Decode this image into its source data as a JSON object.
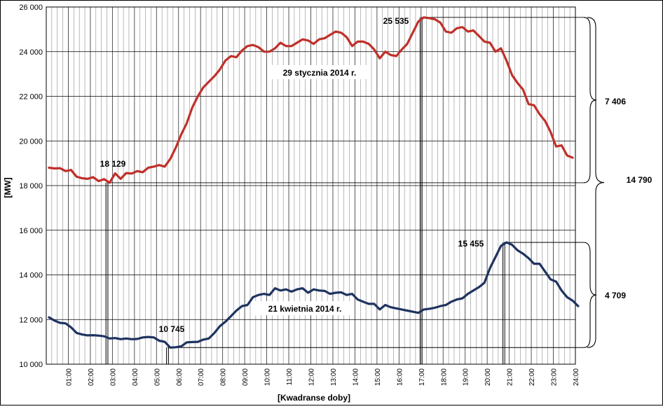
{
  "chart_data": {
    "type": "line",
    "ylabel": "[MW]",
    "xlabel": "[Kwadranse doby]",
    "ylim": [
      10000,
      26000
    ],
    "yticks": [
      10000,
      12000,
      14000,
      16000,
      18000,
      20000,
      22000,
      24000,
      26000
    ],
    "ytick_labels": [
      "10 000",
      "12 000",
      "14 000",
      "16 000",
      "18 000",
      "20 000",
      "22 000",
      "24 000",
      "26 000"
    ],
    "xlim": [
      0,
      96
    ],
    "xticks": [
      4,
      8,
      12,
      16,
      20,
      24,
      28,
      32,
      36,
      40,
      44,
      48,
      52,
      56,
      60,
      64,
      68,
      72,
      76,
      80,
      84,
      88,
      92,
      96
    ],
    "xtick_labels": [
      "01:00",
      "02:00",
      "03:00",
      "04:00",
      "05:00",
      "06:00",
      "07:00",
      "08:00",
      "09:00",
      "10:00",
      "11:00",
      "12:00",
      "13:00",
      "14:00",
      "15:00",
      "16:00",
      "17:00",
      "18:00",
      "19:00",
      "20:00",
      "21:00",
      "22:00",
      "23:00",
      "24:00"
    ],
    "grid": true,
    "series": [
      {
        "name": "29 stycznia 2014 r.",
        "color": "#c0302a",
        "values": [
          18800,
          18770,
          18780,
          18650,
          18700,
          18400,
          18330,
          18300,
          18380,
          18200,
          18290,
          18129,
          18550,
          18300,
          18560,
          18540,
          18650,
          18600,
          18800,
          18850,
          18920,
          18850,
          19200,
          19700,
          20300,
          20800,
          21500,
          22000,
          22400,
          22650,
          22900,
          23200,
          23600,
          23800,
          23750,
          24050,
          24250,
          24300,
          24200,
          24000,
          24000,
          24150,
          24400,
          24250,
          24250,
          24400,
          24550,
          24500,
          24350,
          24550,
          24600,
          24750,
          24900,
          24850,
          24650,
          24250,
          24450,
          24450,
          24350,
          24100,
          23700,
          24000,
          23850,
          23800,
          24100,
          24350,
          24850,
          25350,
          25535,
          25500,
          25450,
          25300,
          24900,
          24850,
          25050,
          25100,
          24900,
          24950,
          24700,
          24450,
          24400,
          24000,
          24150,
          23600,
          22950,
          22600,
          22300,
          21650,
          21600,
          21200,
          20900,
          20400,
          19750,
          19800,
          19350,
          19250
        ]
      },
      {
        "name": "21 kwietnia 2014 r.",
        "color": "#1e3360",
        "values": [
          12100,
          11950,
          11850,
          11830,
          11650,
          11400,
          11330,
          11290,
          11300,
          11280,
          11250,
          11150,
          11170,
          11120,
          11150,
          11120,
          11130,
          11200,
          11220,
          11200,
          11050,
          11000,
          10745,
          10760,
          10800,
          10980,
          10990,
          11000,
          11100,
          11150,
          11400,
          11700,
          11900,
          12150,
          12400,
          12600,
          12650,
          13000,
          13100,
          13150,
          13100,
          13400,
          13300,
          13350,
          13250,
          13350,
          13400,
          13200,
          13350,
          13300,
          13280,
          13150,
          13200,
          13220,
          13100,
          13150,
          12900,
          12800,
          12700,
          12700,
          12450,
          12650,
          12550,
          12500,
          12450,
          12400,
          12350,
          12300,
          12450,
          12480,
          12530,
          12600,
          12650,
          12800,
          12900,
          12950,
          13150,
          13300,
          13450,
          13650,
          14300,
          14800,
          15300,
          15455,
          15350,
          15100,
          14950,
          14750,
          14500,
          14500,
          14150,
          13800,
          13700,
          13300,
          13000,
          12850,
          12600
        ]
      }
    ],
    "annotations": {
      "series0_label": "29 stycznia 2014 r.",
      "series1_label": "21 kwietnia 2014 r.",
      "s0_min_label": "18 129",
      "s0_max_label": "25 535",
      "s1_min_label": "10 745",
      "s1_max_label": "15 455",
      "range_s0_label": "7 406",
      "range_s1_label": "4 709",
      "range_total_label": "14 790"
    },
    "markers": {
      "s0_min_x": 11,
      "s0_max_x": 68,
      "s1_min_x": 22,
      "s1_max_x": 83
    }
  }
}
